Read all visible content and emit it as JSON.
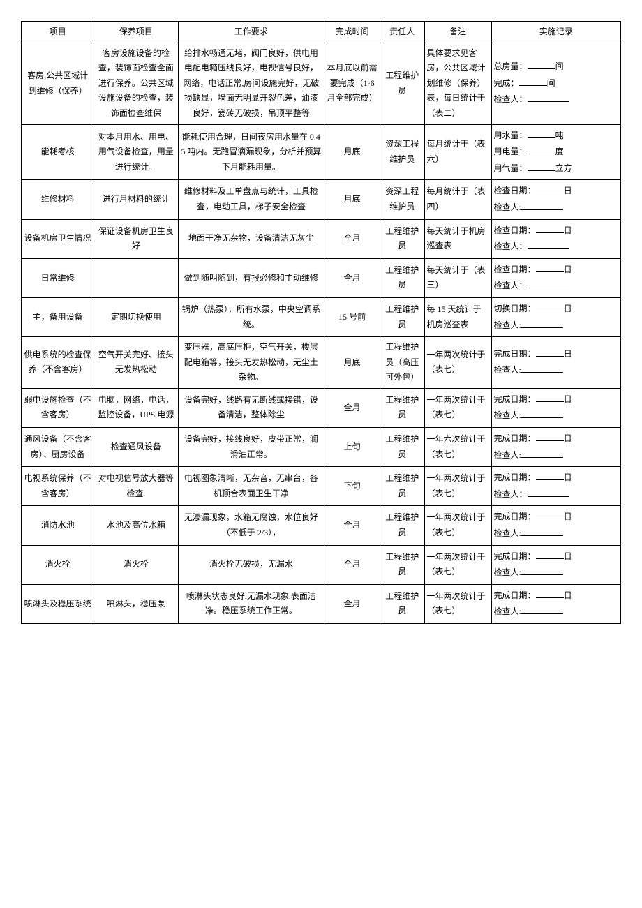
{
  "columns": [
    "项目",
    "保养项目",
    "工作要求",
    "完成时间",
    "责任人",
    "备注",
    "实施记录"
  ],
  "rows": [
    {
      "proj": "客房,公共区域计划维修（保养）",
      "maint": "客房设施设备的检查，装饰面检查全面进行保养。公共区域设施设备的检查，装饰面检查维保",
      "req": "给排水畅通无堵，阀门良好，供电用电配电箱压线良好，电视信号良好，网络，电话正常,房间设施完好，无破损缺显，墙面无明显开裂色差，油漆良好，瓷砖无破损，吊顶平整等",
      "time": "本月底以前需要完成（1-6 月全部完成）",
      "resp": "工程维护员",
      "note": "具体要求见客房，公共区域计划维修（保养）表，每日统计于（表二）",
      "rec": [
        {
          "label": "总房量：",
          "unit": "间"
        },
        {
          "label": "完成：",
          "unit": "间"
        },
        {
          "label": "检查人：",
          "unit": ""
        }
      ]
    },
    {
      "proj": "能耗考核",
      "maint": "对本月用水、用电、用气设备检查，用量进行统计。",
      "req": "能耗使用合理，日间夜房用水量在 0.45 吨内。无跑冒滴漏现象，分析并预算下月能耗用量。",
      "time": "月底",
      "resp": "资深工程维护员",
      "note": "每月统计于（表六）",
      "rec": [
        {
          "label": "用水量：",
          "unit": "吨"
        },
        {
          "label": "用电量：",
          "unit": "度"
        },
        {
          "label": "用气量：",
          "unit": "立方"
        }
      ]
    },
    {
      "proj": "维修材料",
      "maint": "进行月材料的统计",
      "req": "维修材料及工单盘点与统计，工具检查，电动工具，梯子安全检查",
      "time": "月底",
      "resp": "资深工程维护员",
      "note": "每月统计于（表四）",
      "rec": [
        {
          "label": "检查日期：",
          "unit": "日"
        },
        {
          "label": "检查人:",
          "unit": ""
        }
      ]
    },
    {
      "proj": "设备机房卫生情况",
      "maint": "保证设备机房卫生良好",
      "req": "地面干净无杂物，设备清洁无灰尘",
      "time": "全月",
      "resp": "工程维护员",
      "note": "每天统计于机房巡查表",
      "rec": [
        {
          "label": "检查日期：",
          "unit": "日"
        },
        {
          "label": "检查人：",
          "unit": ""
        }
      ]
    },
    {
      "proj": "日常维修",
      "maint": "",
      "req": "做到随叫随到，有报必修和主动维修",
      "time": "全月",
      "resp": "工程维护员",
      "note": "每天统计于（表三）",
      "rec": [
        {
          "label": "检查日期：",
          "unit": "日"
        },
        {
          "label": "检查人：",
          "unit": ""
        }
      ]
    },
    {
      "proj": "主，备用设备",
      "maint": "定期切换使用",
      "req": "锅炉（热泵），所有水泵，中央空调系统。",
      "time": "15 号前",
      "resp": "工程维护员",
      "note": "每 15 天统计于机房巡查表",
      "rec": [
        {
          "label": "切换日期：",
          "unit": "日"
        },
        {
          "label": "检查人:",
          "unit": ""
        }
      ]
    },
    {
      "proj": "供电系统的检查保养（不含客房）",
      "maint": "空气开关完好、接头无发热松动",
      "req": "变压器，高底压柜，空气开关，楼层配电箱等，接头无发热松动，无尘土杂物。",
      "time": "月底",
      "resp": "工程维护员（高压可外包）",
      "note": "一年两次统计于（表七）",
      "rec": [
        {
          "label": "完成日期：",
          "unit": "日"
        },
        {
          "label": "检查人:",
          "unit": ""
        }
      ]
    },
    {
      "proj": "弱电设施检查（不含客房）",
      "maint": "电脑，网络，电话，监控设备，UPS 电源",
      "req": "设备完好，线路有无断线或接错，设备清洁，整体除尘",
      "time": "全月",
      "resp": "工程维护员",
      "note": "一年两次统计于（表七）",
      "rec": [
        {
          "label": "完成日期：",
          "unit": "日"
        },
        {
          "label": "检查人:",
          "unit": ""
        }
      ]
    },
    {
      "proj": "通风设备（不含客房）、厨房设备",
      "maint": "检查通风设备",
      "req": "设备完好，接线良好，皮带正常，润滑油正常。",
      "time": "上旬",
      "resp": "工程维护员",
      "note": "一年六次统计于（表七）",
      "rec": [
        {
          "label": "完成日期：",
          "unit": "日"
        },
        {
          "label": "检查人:",
          "unit": ""
        }
      ]
    },
    {
      "proj": "电视系统保养（不含客房）",
      "maint": "对电视信号放大器等检查.",
      "req": "电视图象清晰，无杂音，无串台，各机顶合表面卫生干净",
      "time": "下旬",
      "resp": "工程维护员",
      "note": "一年两次统计于（表七）",
      "rec": [
        {
          "label": "完成日期：",
          "unit": "日"
        },
        {
          "label": "检查人：",
          "unit": ""
        }
      ]
    },
    {
      "proj": "消防水池",
      "maint": "水池及高位水箱",
      "req": "无渗漏现象，水箱无腐蚀，水位良好（不低于 2/3），",
      "time": "全月",
      "resp": "工程维护员",
      "note": "一年两次统计于（表七）",
      "rec": [
        {
          "label": "完成日期：",
          "unit": "日"
        },
        {
          "label": "检查人:",
          "unit": ""
        }
      ]
    },
    {
      "proj": "消火栓",
      "maint": "消火栓",
      "req": "消火栓无破损，无漏水",
      "time": "全月",
      "resp": "工程维护员",
      "note": "一年两次统计于（表七）",
      "rec": [
        {
          "label": "完成日期：",
          "unit": "日"
        },
        {
          "label": "检查人:",
          "unit": ""
        }
      ]
    },
    {
      "proj": "喷淋头及稳压系统",
      "maint": "喷淋头，稳压泵",
      "req": "喷淋头状态良好,无漏水现象,表面洁净。稳压系统工作正常。",
      "time": "全月",
      "resp": "工程维护员",
      "note": "一年两次统计于（表七）",
      "rec": [
        {
          "label": "完成日期：",
          "unit": "日"
        },
        {
          "label": "检查人:",
          "unit": ""
        }
      ]
    }
  ]
}
